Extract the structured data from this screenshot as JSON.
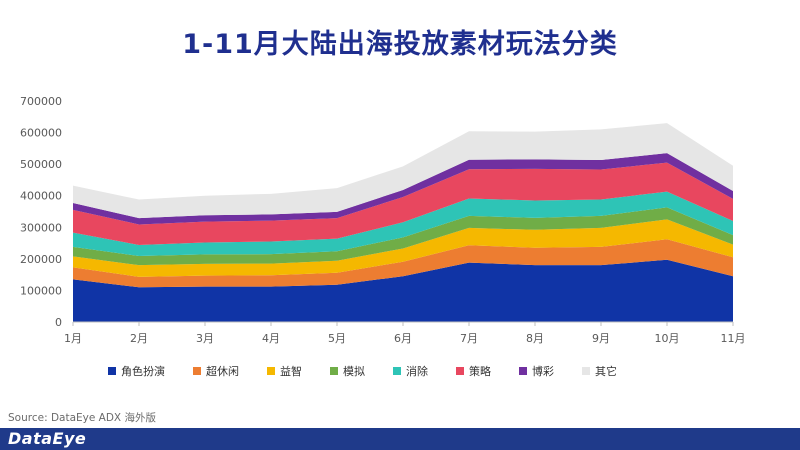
{
  "page": {
    "title": "1-11月大陆出海投放素材玩法分类",
    "source": "Source: DataEye ADX 海外版",
    "brand": "DataEye"
  },
  "chart_data": {
    "type": "area",
    "stacked": true,
    "title": "1-11月大陆出海投放素材玩法分类",
    "xlabel": "",
    "ylabel": "",
    "ylim": [
      0,
      700000
    ],
    "yticks": [
      0,
      100000,
      200000,
      300000,
      400000,
      500000,
      600000,
      700000
    ],
    "categories": [
      "1月",
      "2月",
      "3月",
      "4月",
      "5月",
      "6月",
      "7月",
      "8月",
      "9月",
      "10月",
      "11月"
    ],
    "legend_position": "bottom",
    "series": [
      {
        "name": "角色扮演",
        "color": "#1034a6",
        "values": [
          135000,
          110000,
          112000,
          112000,
          118000,
          145000,
          188000,
          180000,
          180000,
          197000,
          145000
        ]
      },
      {
        "name": "超休闲",
        "color": "#ed7d31",
        "values": [
          38000,
          33000,
          35000,
          36000,
          38000,
          46000,
          55000,
          55000,
          58000,
          65000,
          60000
        ]
      },
      {
        "name": "益智",
        "color": "#f5b800",
        "values": [
          35000,
          37000,
          37000,
          37000,
          38000,
          42000,
          55000,
          57000,
          60000,
          63000,
          40000
        ]
      },
      {
        "name": "模拟",
        "color": "#70ad47",
        "values": [
          30000,
          29000,
          30000,
          30000,
          30000,
          35000,
          38000,
          38000,
          38000,
          38000,
          30000
        ]
      },
      {
        "name": "消除",
        "color": "#2ec4b6",
        "values": [
          45000,
          35000,
          38000,
          40000,
          40000,
          48000,
          55000,
          55000,
          52000,
          50000,
          45000
        ]
      },
      {
        "name": "策略",
        "color": "#e8475f",
        "values": [
          72000,
          65000,
          66000,
          66000,
          65000,
          80000,
          93000,
          100000,
          95000,
          92000,
          70000
        ]
      },
      {
        "name": "博彩",
        "color": "#7030a0",
        "values": [
          22000,
          20000,
          20000,
          20000,
          20000,
          22000,
          30000,
          30000,
          30000,
          30000,
          25000
        ]
      },
      {
        "name": "其它",
        "color": "#e6e6e6",
        "values": [
          55000,
          59000,
          62000,
          65000,
          75000,
          75000,
          90000,
          88000,
          97000,
          95000,
          80000
        ]
      }
    ]
  }
}
